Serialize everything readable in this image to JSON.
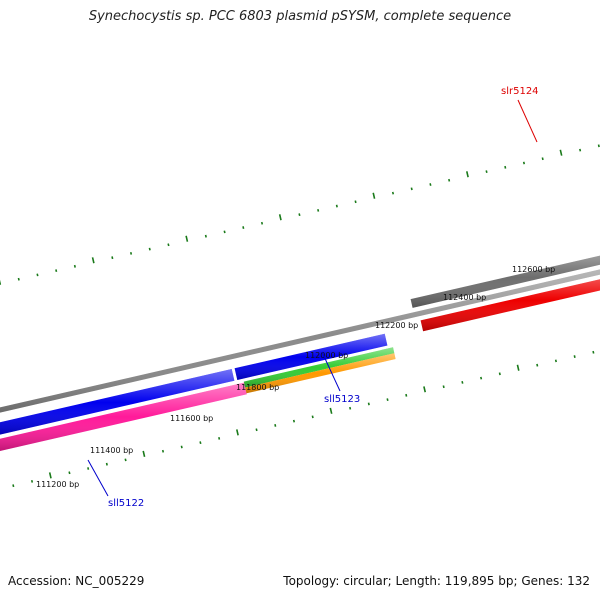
{
  "title": "Synechocystis sp. PCC 6803 plasmid pSYSM, complete sequence",
  "footer": {
    "accession": "Accession: NC_005229",
    "summary": "Topology: circular; Length: 119,895 bp; Genes: 132"
  },
  "colors": {
    "tick": "#1a7a1a",
    "backbone": "#8a8a8a",
    "gene_forward_gray": "#6e6e6e",
    "gene_red": "#ee0000",
    "gene_blue": "#0000ee",
    "gene_pink": "#ff1a9a",
    "gene_green": "#33cc33",
    "gene_orange": "#ff9900",
    "label_red": "#dd0000",
    "label_blue": "#0000cc"
  },
  "positions": [
    {
      "label": "111200 bp"
    },
    {
      "label": "111400 bp"
    },
    {
      "label": "111600 bp"
    },
    {
      "label": "111800 bp"
    },
    {
      "label": "112000 bp"
    },
    {
      "label": "112200 bp"
    },
    {
      "label": "112400 bp"
    },
    {
      "label": "112600 bp"
    }
  ],
  "genes": [
    {
      "label": "sll5122",
      "color_key": "label_blue"
    },
    {
      "label": "sll5123",
      "color_key": "label_blue"
    },
    {
      "label": "slr5124",
      "color_key": "label_red"
    }
  ]
}
